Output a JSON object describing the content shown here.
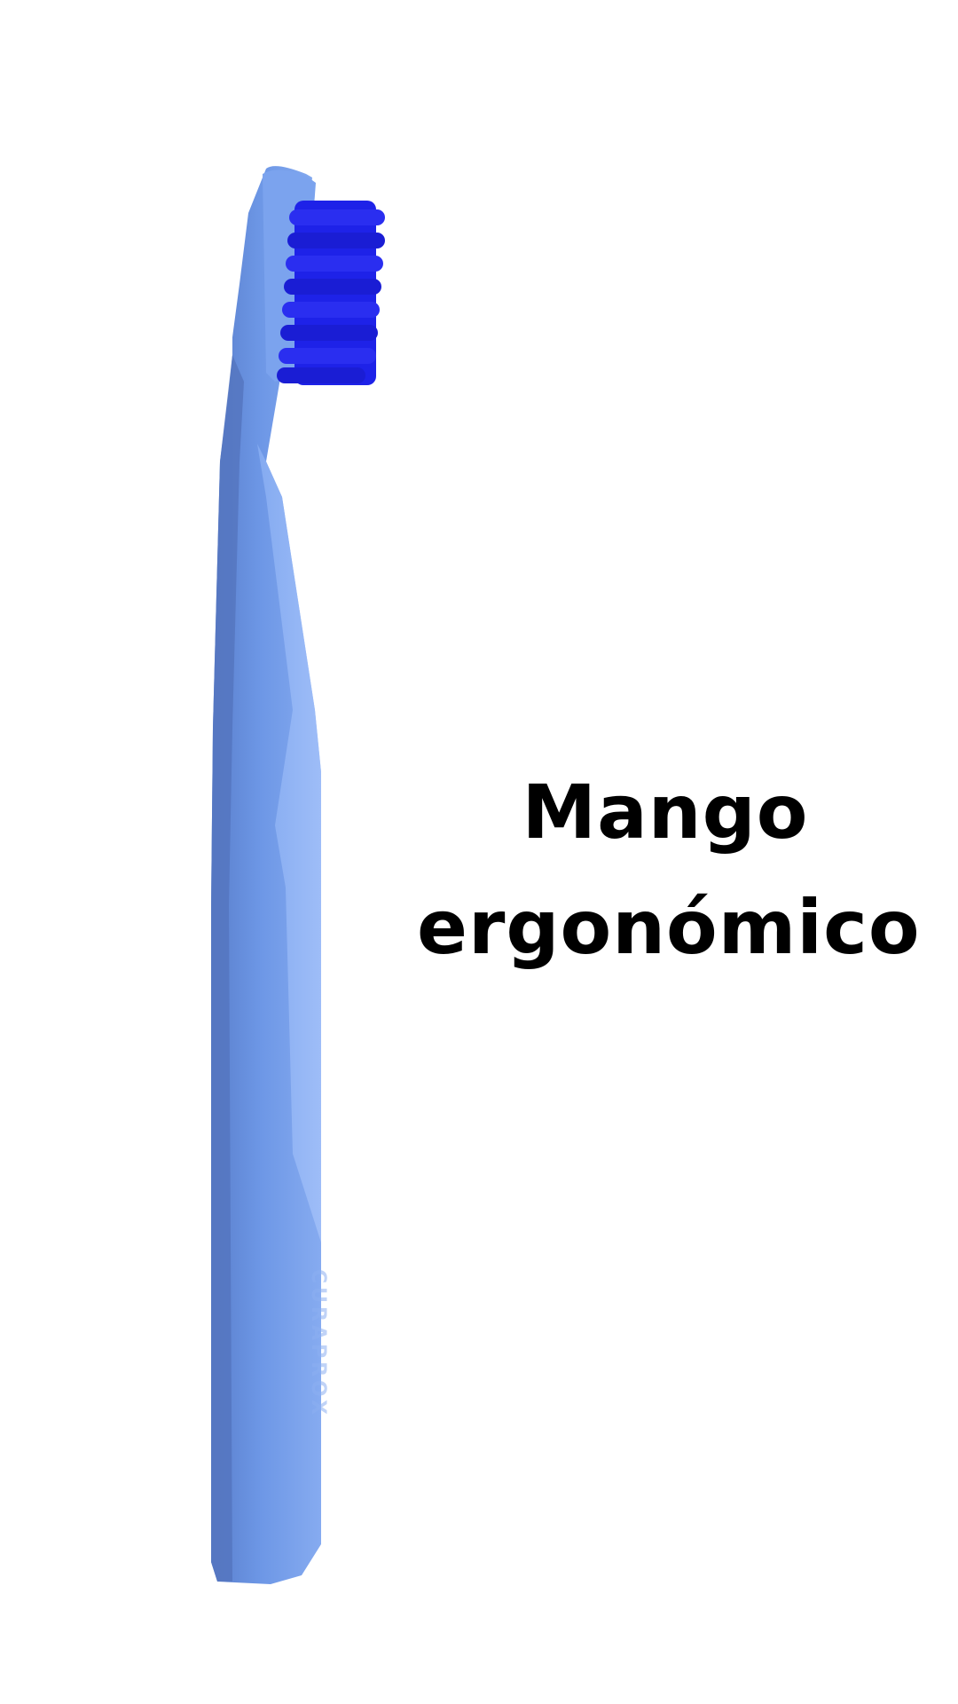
{
  "product": {
    "icon": "toothbrush-icon",
    "handle_color": "#6b95e3",
    "handle_shade_color": "#5b80cf",
    "handle_highlight_color": "#8fb3f5",
    "bristle_color": "#1e22e8",
    "engraving": "CURAPROX"
  },
  "caption": {
    "line1": "Mango",
    "line2": "ergonómico"
  }
}
